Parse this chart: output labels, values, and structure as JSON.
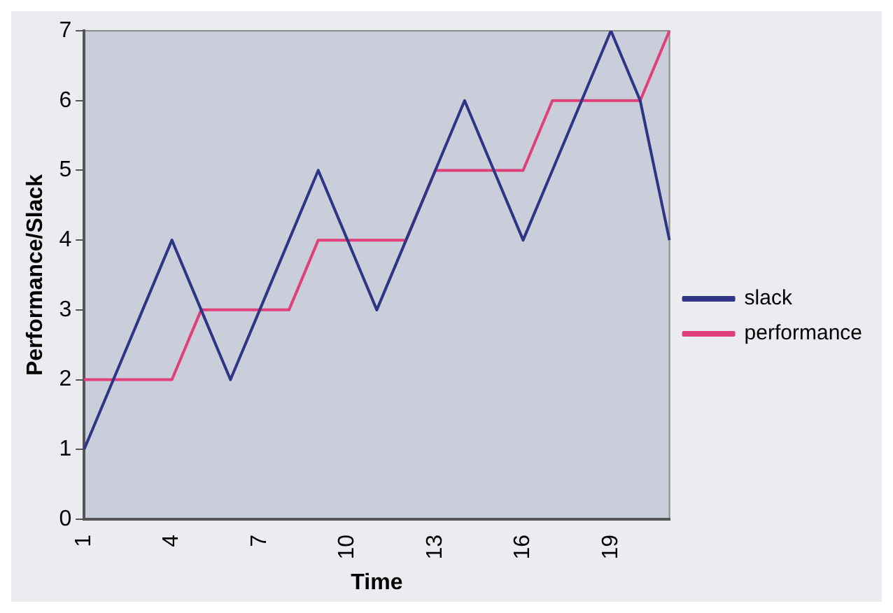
{
  "chart_data": {
    "type": "line",
    "xlabel": "Time",
    "ylabel": "Performance/Slack",
    "categories": [
      "1",
      null,
      null,
      "4",
      null,
      null,
      "7",
      null,
      null,
      "10",
      null,
      null,
      "13",
      null,
      null,
      "16",
      null,
      null,
      "19",
      null,
      null
    ],
    "series": [
      {
        "name": "slack",
        "color": "#2e3585",
        "values": [
          1,
          2,
          3,
          4,
          3,
          2,
          3,
          4,
          5,
          4,
          3,
          4,
          5,
          6,
          5,
          4,
          5,
          6,
          7,
          6,
          4
        ]
      },
      {
        "name": "performance",
        "color": "#e0407a",
        "values": [
          2,
          2,
          2,
          2,
          3,
          3,
          3,
          3,
          4,
          4,
          4,
          4,
          5,
          5,
          5,
          5,
          6,
          6,
          6,
          6,
          7
        ]
      }
    ],
    "ylim": [
      0,
      7
    ],
    "yticks": [
      0,
      1,
      2,
      3,
      4,
      5,
      6,
      7
    ],
    "grid": false,
    "legend": "right",
    "marker": "none",
    "line_style": "solid"
  }
}
